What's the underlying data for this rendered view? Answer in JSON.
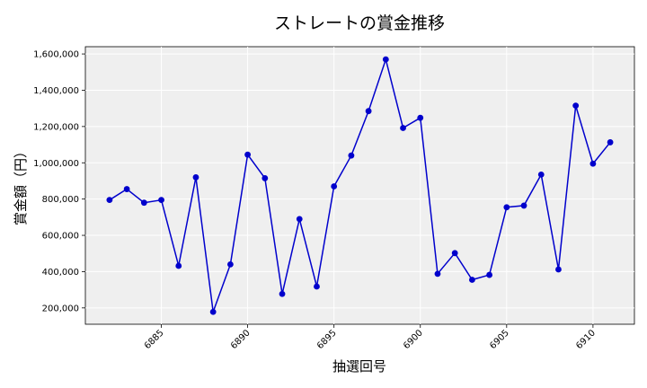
{
  "chart_data": {
    "type": "line",
    "title": "ストレートの賞金推移",
    "xlabel": "抽選回号",
    "ylabel": "賞金額（円）",
    "xlim": [
      6880.6,
      6912.4
    ],
    "ylim": [
      110000,
      1640000
    ],
    "xticks": [
      6885,
      6890,
      6895,
      6900,
      6905,
      6910
    ],
    "xtick_labels": [
      "6885",
      "6890",
      "6895",
      "6900",
      "6905",
      "6910"
    ],
    "yticks": [
      200000,
      400000,
      600000,
      800000,
      1000000,
      1200000,
      1400000,
      1600000
    ],
    "ytick_labels": [
      "200,000",
      "400,000",
      "600,000",
      "800,000",
      "1,000,000",
      "1,200,000",
      "1,400,000",
      "1,600,000"
    ],
    "grid": true,
    "series": [
      {
        "color": "#0000cc",
        "x": [
          6882,
          6883,
          6884,
          6885,
          6886,
          6887,
          6888,
          6889,
          6890,
          6891,
          6892,
          6893,
          6894,
          6895,
          6896,
          6897,
          6898,
          6899,
          6900,
          6901,
          6902,
          6903,
          6904,
          6905,
          6906,
          6907,
          6908,
          6909,
          6910,
          6911
        ],
        "values": [
          795000,
          855000,
          780000,
          795000,
          432000,
          920000,
          178000,
          440000,
          1045000,
          915000,
          277000,
          690000,
          318000,
          870000,
          1040000,
          1285000,
          1570000,
          1192000,
          1248000,
          388000,
          502000,
          355000,
          382000,
          755000,
          764000,
          935000,
          412000,
          1315000,
          995000,
          1113000
        ]
      }
    ]
  }
}
